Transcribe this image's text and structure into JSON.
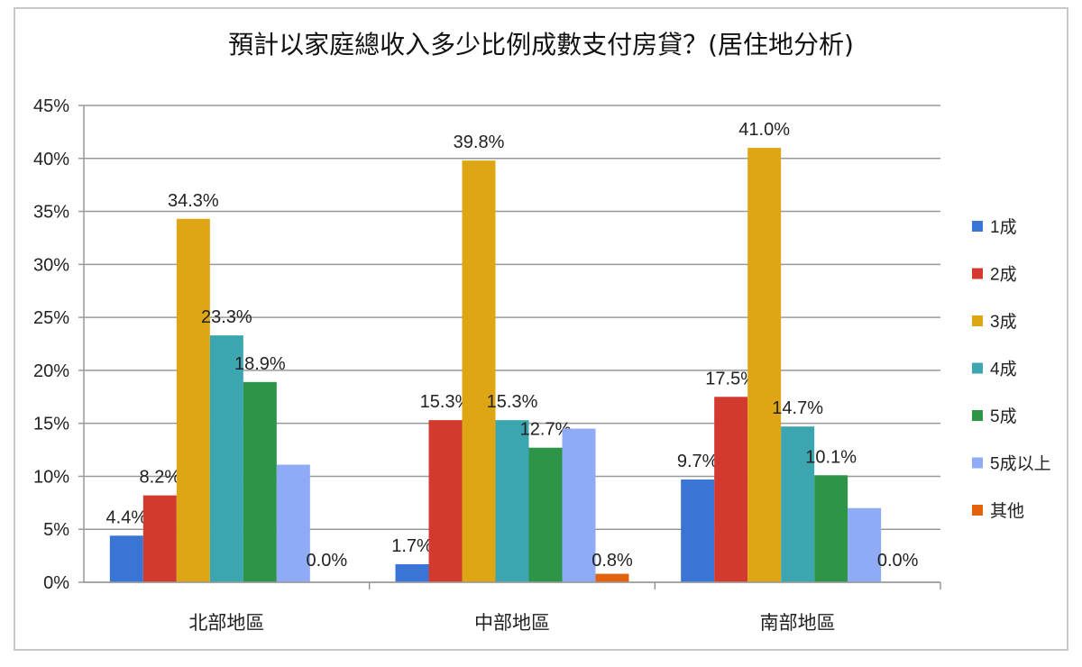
{
  "chart_data": {
    "type": "bar",
    "title": "預計以家庭總收入多少比例成數支付房貸？(居住地分析)",
    "categories": [
      "北部地區",
      "中部地區",
      "南部地區"
    ],
    "ylim": [
      0,
      45
    ],
    "yticks": [
      "0%",
      "5%",
      "10%",
      "15%",
      "20%",
      "25%",
      "30%",
      "35%",
      "40%",
      "45%"
    ],
    "grid": true,
    "legend_position": "right",
    "series": [
      {
        "name": "1成",
        "color": "#3a75d6",
        "values": [
          4.4,
          1.7,
          9.7
        ],
        "labels": [
          "4.4%",
          "1.7%",
          "9.7%"
        ]
      },
      {
        "name": "2成",
        "color": "#d33a2f",
        "values": [
          8.2,
          15.3,
          17.5
        ],
        "labels": [
          "8.2%",
          "15.3%",
          "17.5%"
        ]
      },
      {
        "name": "3成",
        "color": "#dea614",
        "values": [
          34.3,
          39.8,
          41.0
        ],
        "labels": [
          "34.3%",
          "39.8%",
          "41.0%"
        ]
      },
      {
        "name": "4成",
        "color": "#3ca6b0",
        "values": [
          23.3,
          15.3,
          14.7
        ],
        "labels": [
          "23.3%",
          "15.3%",
          "14.7%"
        ]
      },
      {
        "name": "5成",
        "color": "#2e9448",
        "values": [
          18.9,
          12.7,
          10.1
        ],
        "labels": [
          "18.9%",
          "12.7%",
          "10.1%"
        ]
      },
      {
        "name": "5成以上",
        "color": "#8fabf5",
        "values": [
          11.1,
          14.5,
          7.0
        ],
        "labels": [
          "",
          "",
          ""
        ]
      },
      {
        "name": "其他",
        "color": "#e3620e",
        "values": [
          0.0,
          0.8,
          0.0
        ],
        "labels": [
          "0.0%",
          "0.8%",
          "0.0%"
        ]
      }
    ]
  }
}
